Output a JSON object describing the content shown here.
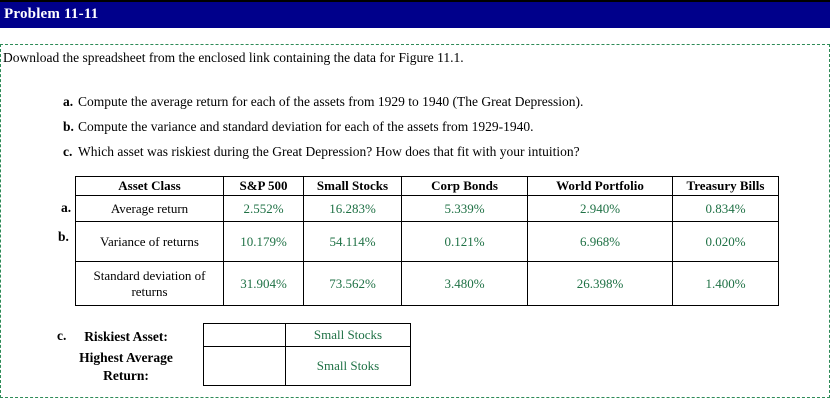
{
  "header": {
    "title": "Problem 11-11"
  },
  "intro": "Download the spreadsheet from the enclosed link containing the data for Figure 11.1.",
  "questions": [
    {
      "letter": "a.",
      "text": "Compute the average return for each of the assets from 1929 to 1940 (The Great Depression)."
    },
    {
      "letter": "b.",
      "text": "Compute the variance and standard deviation for each of the assets from 1929-1940."
    },
    {
      "letter": "c.",
      "text": "Which asset was riskiest during the Great Depression?  How does that fit with your intuition?"
    }
  ],
  "table": {
    "columns": [
      "Asset Class",
      "S&P 500",
      "Small Stocks",
      "Corp Bonds",
      "World Portfolio",
      "Treasury Bills"
    ],
    "rows": [
      {
        "marker": "a.",
        "label": "Average return",
        "values": [
          "2.552%",
          "16.283%",
          "5.339%",
          "2.940%",
          "0.834%"
        ]
      },
      {
        "marker": "b.",
        "label": "Variance of returns",
        "values": [
          "10.179%",
          "54.114%",
          "0.121%",
          "6.968%",
          "0.020%"
        ]
      },
      {
        "marker": "",
        "label": "Standard deviation of returns",
        "values": [
          "31.904%",
          "73.562%",
          "3.480%",
          "26.398%",
          "1.400%"
        ]
      }
    ]
  },
  "answers": {
    "marker": "c.",
    "riskiest_label": "Riskiest Asset:",
    "highest_label": "Highest Average Return:",
    "riskiest_value": "Small Stocks",
    "highest_value": "Small Stoks"
  },
  "colors": {
    "title_bar_navy": "#00008B",
    "value_green": "#1F7145",
    "dashed_border_green": "#2E8B57",
    "table_border_black": "#000000"
  }
}
